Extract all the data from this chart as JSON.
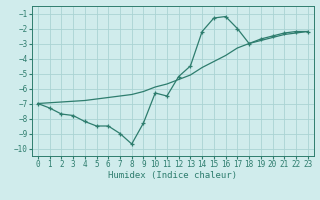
{
  "title": "",
  "xlabel": "Humidex (Indice chaleur)",
  "x_values": [
    0,
    1,
    2,
    3,
    4,
    5,
    6,
    7,
    8,
    9,
    10,
    11,
    12,
    13,
    14,
    15,
    16,
    17,
    18,
    19,
    20,
    21,
    22,
    23
  ],
  "line1_y": [
    -7.0,
    -7.3,
    -7.7,
    -7.8,
    -8.2,
    -8.5,
    -8.5,
    -9.0,
    -9.7,
    -8.3,
    -6.3,
    -6.5,
    -5.2,
    -4.5,
    -2.2,
    -1.3,
    -1.2,
    -2.0,
    -3.0,
    -2.7,
    -2.5,
    -2.3,
    -2.2,
    -2.2
  ],
  "line2_y": [
    -7.0,
    -6.95,
    -6.9,
    -6.85,
    -6.8,
    -6.7,
    -6.6,
    -6.5,
    -6.4,
    -6.2,
    -5.9,
    -5.7,
    -5.4,
    -5.1,
    -4.6,
    -4.2,
    -3.8,
    -3.3,
    -3.0,
    -2.8,
    -2.6,
    -2.4,
    -2.3,
    -2.2
  ],
  "line_color": "#2e7d6e",
  "bg_color": "#d0ecec",
  "grid_color": "#aad4d4",
  "xlim": [
    -0.5,
    23.5
  ],
  "ylim": [
    -10.5,
    -0.5
  ],
  "yticks": [
    -10,
    -9,
    -8,
    -7,
    -6,
    -5,
    -4,
    -3,
    -2,
    -1
  ],
  "xticks": [
    0,
    1,
    2,
    3,
    4,
    5,
    6,
    7,
    8,
    9,
    10,
    11,
    12,
    13,
    14,
    15,
    16,
    17,
    18,
    19,
    20,
    21,
    22,
    23
  ],
  "title_fontsize": 7.0,
  "label_fontsize": 6.5,
  "tick_fontsize": 5.5
}
